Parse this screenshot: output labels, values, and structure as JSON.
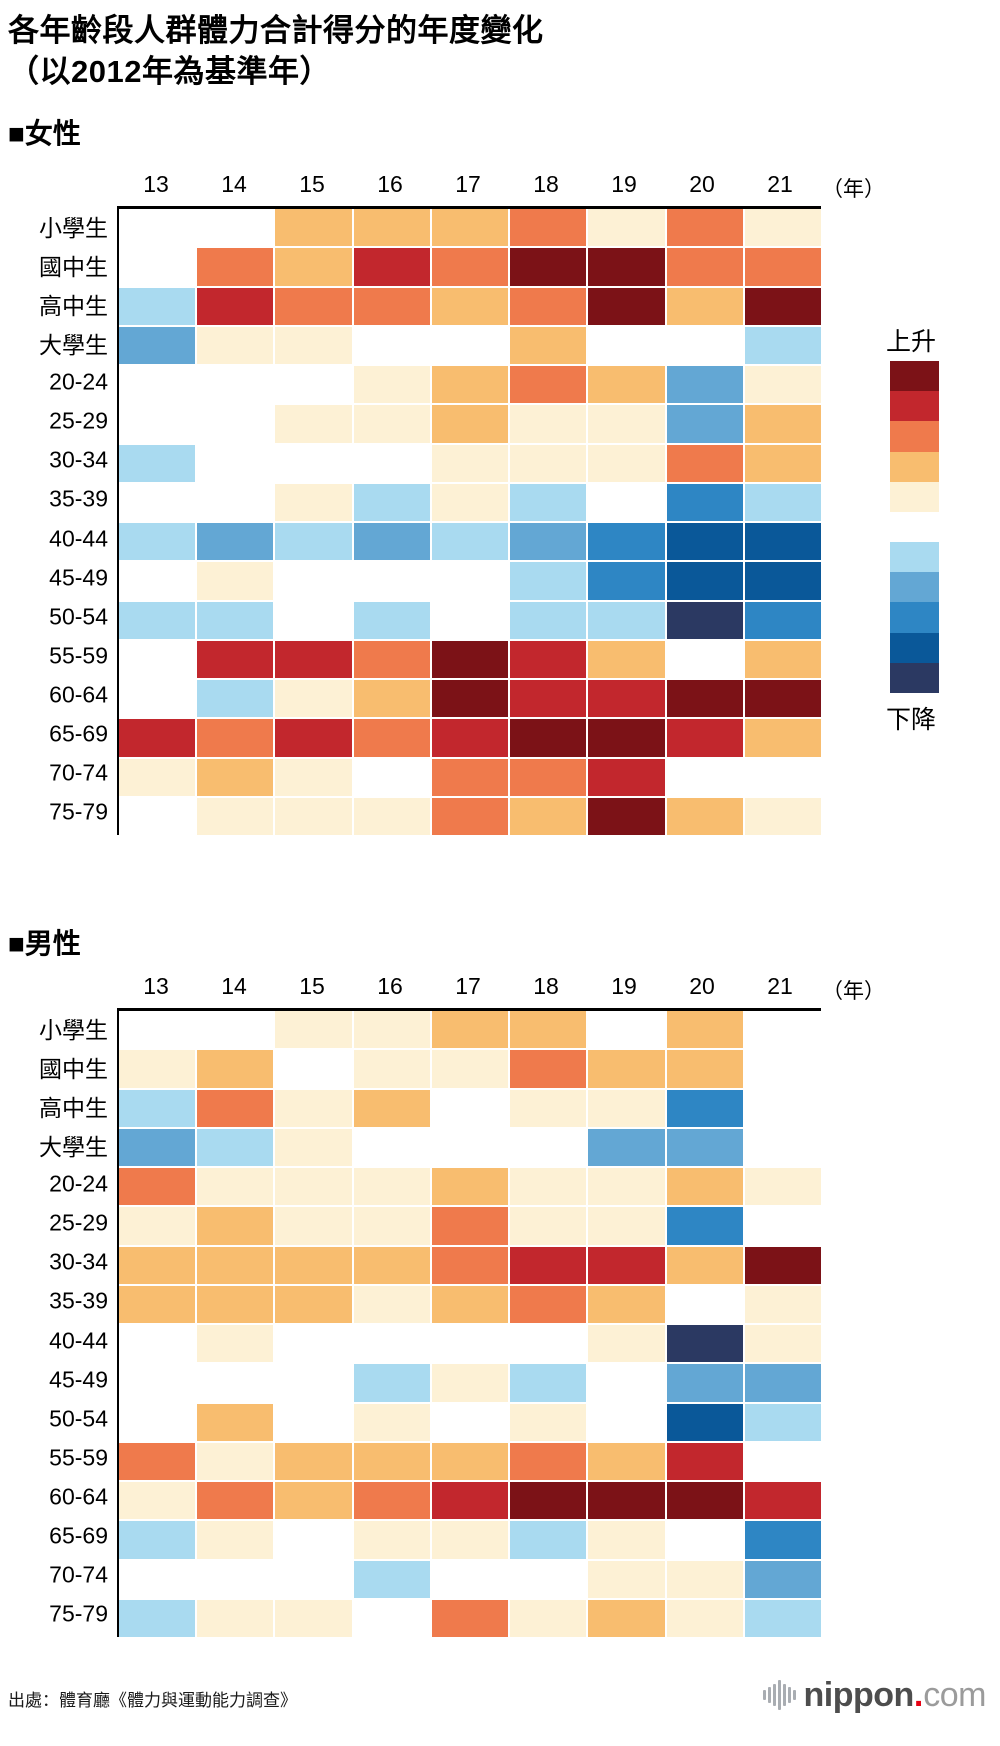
{
  "title": {
    "line1": "各年齡段人群體力合計得分的年度變化",
    "line2": "（以2012年為基準年）"
  },
  "year_unit": "（年）",
  "legend": {
    "up_label": "上升",
    "down_label": "下降",
    "up_colors": [
      "R5",
      "R4",
      "R3",
      "R2",
      "R1"
    ],
    "down_colors": [
      "B1",
      "B2",
      "B3",
      "B4",
      "B5"
    ]
  },
  "footer": {
    "source": "出處：體育廳《體力與運動能力調查》",
    "logo_main": "nippon",
    "logo_dot": ".",
    "logo_tld": "com"
  },
  "chart_data": {
    "type": "heatmap",
    "title": "各年齡段人群體力合計得分的年度變化（以2012年為基準年）",
    "x_label": "年",
    "columns": [
      "13",
      "14",
      "15",
      "16",
      "17",
      "18",
      "19",
      "20",
      "21"
    ],
    "rows": [
      "小學生",
      "國中生",
      "高中生",
      "大學生",
      "20-24",
      "25-29",
      "30-34",
      "35-39",
      "40-44",
      "45-49",
      "50-54",
      "55-59",
      "60-64",
      "65-69",
      "70-74",
      "75-79"
    ],
    "value_scale": {
      "W": "no change / no data",
      "R1": "slight rise",
      "R2": "small rise",
      "R3": "moderate rise",
      "R4": "large rise",
      "R5": "largest rise",
      "B1": "slight decline",
      "B2": "small decline",
      "B3": "moderate decline",
      "B4": "large decline",
      "B5": "largest decline"
    },
    "palette": {
      "W": "#ffffff",
      "R1": "#fdf1d5",
      "R2": "#f8bd6f",
      "R3": "#ef7a4c",
      "R4": "#c2272d",
      "R5": "#7c1217",
      "B1": "#a9daf0",
      "B2": "#63a7d4",
      "B3": "#2e86c4",
      "B4": "#0a5899",
      "B5": "#2b3962"
    },
    "series": [
      {
        "name": "女性",
        "label": "■女性",
        "cells": [
          [
            "W",
            "W",
            "R2",
            "R2",
            "R2",
            "R3",
            "R1",
            "R3",
            "R1"
          ],
          [
            "W",
            "R3",
            "R2",
            "R4",
            "R3",
            "R5",
            "R5",
            "R3",
            "R3"
          ],
          [
            "B1",
            "R4",
            "R3",
            "R3",
            "R2",
            "R3",
            "R5",
            "R2",
            "R5"
          ],
          [
            "B2",
            "R1",
            "R1",
            "W",
            "W",
            "R2",
            "W",
            "W",
            "B1"
          ],
          [
            "W",
            "W",
            "W",
            "R1",
            "R2",
            "R3",
            "R2",
            "B2",
            "R1"
          ],
          [
            "W",
            "W",
            "R1",
            "R1",
            "R2",
            "R1",
            "R1",
            "B2",
            "R2"
          ],
          [
            "B1",
            "W",
            "W",
            "W",
            "R1",
            "R1",
            "R1",
            "R3",
            "R2"
          ],
          [
            "W",
            "W",
            "R1",
            "B1",
            "R1",
            "B1",
            "W",
            "B3",
            "B1"
          ],
          [
            "B1",
            "B2",
            "B1",
            "B2",
            "B1",
            "B2",
            "B3",
            "B4",
            "B4"
          ],
          [
            "W",
            "R1",
            "W",
            "W",
            "W",
            "B1",
            "B3",
            "B4",
            "B4"
          ],
          [
            "B1",
            "B1",
            "W",
            "B1",
            "W",
            "B1",
            "B1",
            "B5",
            "B3"
          ],
          [
            "W",
            "R4",
            "R4",
            "R3",
            "R5",
            "R4",
            "R2",
            "W",
            "R2"
          ],
          [
            "W",
            "B1",
            "R1",
            "R2",
            "R5",
            "R4",
            "R4",
            "R5",
            "R5"
          ],
          [
            "R4",
            "R3",
            "R4",
            "R3",
            "R4",
            "R5",
            "R5",
            "R4",
            "R2"
          ],
          [
            "R1",
            "R2",
            "R1",
            "W",
            "R3",
            "R3",
            "R4",
            "W",
            "W"
          ],
          [
            "W",
            "R1",
            "R1",
            "R1",
            "R3",
            "R2",
            "R5",
            "R2",
            "R1"
          ]
        ]
      },
      {
        "name": "男性",
        "label": "■男性",
        "cells": [
          [
            "W",
            "W",
            "R1",
            "R1",
            "R2",
            "R2",
            "W",
            "R2",
            "W"
          ],
          [
            "R1",
            "R2",
            "W",
            "R1",
            "R1",
            "R3",
            "R2",
            "R2",
            "W"
          ],
          [
            "B1",
            "R3",
            "R1",
            "R2",
            "W",
            "R1",
            "R1",
            "B3",
            "W"
          ],
          [
            "B2",
            "B1",
            "R1",
            "W",
            "W",
            "W",
            "B2",
            "B2",
            "W"
          ],
          [
            "R3",
            "R1",
            "R1",
            "R1",
            "R2",
            "R1",
            "R1",
            "R2",
            "R1"
          ],
          [
            "R1",
            "R2",
            "R1",
            "R1",
            "R3",
            "R1",
            "R1",
            "B3",
            "W"
          ],
          [
            "R2",
            "R2",
            "R2",
            "R2",
            "R3",
            "R4",
            "R4",
            "R2",
            "R5"
          ],
          [
            "R2",
            "R2",
            "R2",
            "R1",
            "R2",
            "R3",
            "R2",
            "W",
            "R1"
          ],
          [
            "W",
            "R1",
            "W",
            "W",
            "W",
            "W",
            "R1",
            "B5",
            "R1"
          ],
          [
            "W",
            "W",
            "W",
            "B1",
            "R1",
            "B1",
            "W",
            "B2",
            "B2"
          ],
          [
            "W",
            "R2",
            "W",
            "R1",
            "W",
            "R1",
            "W",
            "B4",
            "B1"
          ],
          [
            "R3",
            "R1",
            "R2",
            "R2",
            "R2",
            "R3",
            "R2",
            "R4",
            "W"
          ],
          [
            "R1",
            "R3",
            "R2",
            "R3",
            "R4",
            "R5",
            "R5",
            "R5",
            "R4"
          ],
          [
            "B1",
            "R1",
            "W",
            "R1",
            "R1",
            "B1",
            "R1",
            "W",
            "B3"
          ],
          [
            "W",
            "W",
            "W",
            "B1",
            "W",
            "W",
            "R1",
            "R1",
            "B2"
          ],
          [
            "B1",
            "R1",
            "R1",
            "W",
            "R3",
            "R1",
            "R2",
            "R1",
            "B1"
          ]
        ]
      }
    ]
  }
}
